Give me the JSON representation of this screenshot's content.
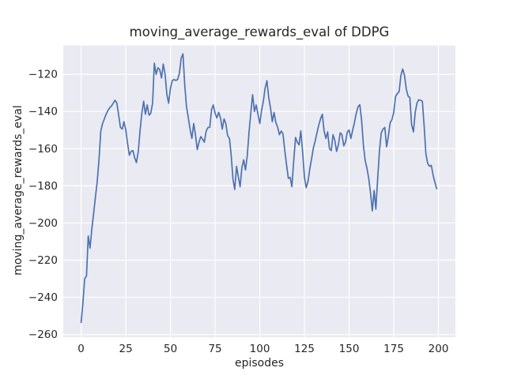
{
  "figure": {
    "title": "moving_average_rewards_eval of DDPG",
    "xlabel": "episodes",
    "ylabel": "moving_average_rewards_eval"
  },
  "chart_data": {
    "type": "line",
    "title": "moving_average_rewards_eval of DDPG",
    "xlabel": "episodes",
    "ylabel": "moving_average_rewards_eval",
    "xticks": [
      0,
      25,
      50,
      75,
      100,
      125,
      150,
      175,
      200
    ],
    "yticks": [
      -120,
      -140,
      -160,
      -180,
      -200,
      -220,
      -240,
      -260
    ],
    "xlim": [
      -10,
      209.5
    ],
    "ylim": [
      -261.5,
      -104.5
    ],
    "grid": true,
    "legend_position": "none",
    "plot_bg": "#eaeaf2",
    "grid_color": "#ffffff",
    "text_color": "#262626",
    "series": [
      {
        "name": "moving_average_rewards_eval",
        "color": "#4c72b0",
        "x": [
          0,
          1,
          2,
          3,
          4,
          5,
          6,
          7,
          8,
          9,
          10,
          11,
          12,
          13,
          14,
          15,
          16,
          17,
          18,
          19,
          20,
          21,
          22,
          23,
          24,
          25,
          26,
          27,
          28,
          29,
          30,
          31,
          32,
          33,
          34,
          35,
          36,
          37,
          38,
          39,
          40,
          41,
          42,
          43,
          44,
          45,
          46,
          47,
          48,
          49,
          50,
          51,
          52,
          53,
          54,
          55,
          56,
          57,
          58,
          59,
          60,
          61,
          62,
          63,
          64,
          65,
          66,
          67,
          68,
          69,
          70,
          71,
          72,
          73,
          74,
          75,
          76,
          77,
          78,
          79,
          80,
          81,
          82,
          83,
          84,
          85,
          86,
          87,
          88,
          89,
          90,
          91,
          92,
          93,
          94,
          95,
          96,
          97,
          98,
          99,
          100,
          101,
          102,
          103,
          104,
          105,
          106,
          107,
          108,
          109,
          110,
          111,
          112,
          113,
          114,
          115,
          116,
          117,
          118,
          119,
          120,
          121,
          122,
          123,
          124,
          125,
          126,
          127,
          128,
          129,
          130,
          131,
          132,
          133,
          134,
          135,
          136,
          137,
          138,
          139,
          140,
          141,
          142,
          143,
          144,
          145,
          146,
          147,
          148,
          149,
          150,
          151,
          152,
          153,
          154,
          155,
          156,
          157,
          158,
          159,
          160,
          161,
          162,
          163,
          164,
          165,
          166,
          167,
          168,
          169,
          170,
          171,
          172,
          173,
          174,
          175,
          176,
          177,
          178,
          179,
          180,
          181,
          182,
          183,
          184,
          185,
          186,
          187,
          188,
          189,
          190,
          191,
          192,
          193,
          194,
          195,
          196,
          197,
          198,
          199
        ],
        "y": [
          -253.5,
          -243,
          -230,
          -228.5,
          -207,
          -213.5,
          -203,
          -195,
          -186,
          -178,
          -166,
          -150.5,
          -146.5,
          -144,
          -141.5,
          -139.5,
          -138,
          -137,
          -135.5,
          -134,
          -135.5,
          -142,
          -148.5,
          -149.5,
          -145.5,
          -150,
          -157,
          -163.5,
          -161.5,
          -161,
          -165,
          -167.5,
          -161.5,
          -150,
          -141,
          -134.5,
          -141.5,
          -136.5,
          -142,
          -141,
          -135.5,
          -114,
          -120,
          -116.5,
          -117.5,
          -122,
          -114.5,
          -120,
          -131,
          -135.5,
          -127.5,
          -123.5,
          -122.8,
          -123.3,
          -122.8,
          -119.5,
          -111.5,
          -109,
          -126,
          -137.5,
          -143.5,
          -149.5,
          -154.5,
          -146.5,
          -152.5,
          -160.5,
          -156.5,
          -153.5,
          -155,
          -156.5,
          -150.5,
          -148.7,
          -148.5,
          -139,
          -136.5,
          -141,
          -143.5,
          -140.5,
          -143.5,
          -149.5,
          -144,
          -146.5,
          -153,
          -154.5,
          -163.5,
          -176.5,
          -182,
          -169.5,
          -175,
          -180.5,
          -170,
          -166,
          -171.5,
          -164,
          -151,
          -140.5,
          -131,
          -140,
          -136.5,
          -141.5,
          -146.5,
          -139.5,
          -134.5,
          -127.5,
          -123.5,
          -132.5,
          -138,
          -145.5,
          -140.5,
          -146,
          -148.5,
          -152.5,
          -150.5,
          -152,
          -161,
          -169,
          -176,
          -175.5,
          -180.5,
          -166.5,
          -154,
          -156.5,
          -158,
          -150.5,
          -162,
          -175.5,
          -181,
          -177.5,
          -171,
          -165.5,
          -159.5,
          -156,
          -151.5,
          -147.5,
          -144,
          -141.5,
          -150.5,
          -154.5,
          -151,
          -160,
          -161,
          -152.5,
          -155.5,
          -161.5,
          -158,
          -151.5,
          -152.5,
          -158.5,
          -156.5,
          -151,
          -150,
          -154.5,
          -150,
          -146,
          -141,
          -137.5,
          -136.3,
          -145,
          -158,
          -166.5,
          -170.5,
          -176,
          -184,
          -193.5,
          -182.5,
          -192.5,
          -176,
          -161,
          -151.5,
          -149.5,
          -148.6,
          -159,
          -153,
          -146,
          -144.3,
          -140.5,
          -132,
          -130.3,
          -129.4,
          -120.5,
          -117.2,
          -120.5,
          -128,
          -131.7,
          -132.6,
          -147,
          -151,
          -140.5,
          -135.5,
          -133.7,
          -134,
          -134.5,
          -148,
          -163,
          -168,
          -169.5,
          -169,
          -174.3,
          -178,
          -181.5
        ]
      }
    ]
  }
}
